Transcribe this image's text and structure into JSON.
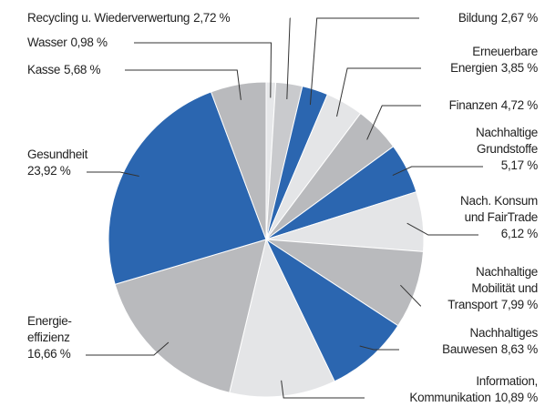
{
  "chart_data": {
    "type": "pie",
    "categories": [
      "Wasser",
      "Recycling u. Wiederverwertung",
      "Bildung",
      "Erneuerbare\nEnergien",
      "Finanzen",
      "Nachhaltige\nGrundstoffe\n",
      "Nach. Konsum\nund FairTrade\n",
      "Nachhaltige\nMobilität und\nTransport",
      "Nachhaltiges\nBauwesen",
      "Information,\nKommunikation",
      "Energie-\neffizienz\n",
      "Gesundheit\n",
      "Kasse"
    ],
    "values": [
      0.98,
      2.72,
      2.67,
      3.85,
      4.72,
      5.17,
      6.12,
      7.99,
      8.63,
      10.89,
      16.66,
      23.92,
      5.68
    ],
    "value_labels": [
      "0,98 %",
      "2,72 %",
      "2,67 %",
      "3,85 %",
      "4,72 %",
      "5,17 %",
      "6,12 %",
      "7,99 %",
      "8,63 %",
      "10,89 %",
      "16,66 %",
      "23,92 %",
      "5,68 %"
    ],
    "colors": [
      "#e6e7e9",
      "#c9cacd",
      "#2b66b0",
      "#e4e5e7",
      "#b9babd",
      "#2b66b0",
      "#e4e5e7",
      "#b9babd",
      "#2b66b0",
      "#e4e5e7",
      "#b9babd",
      "#2b66b0",
      "#b9babd"
    ]
  }
}
